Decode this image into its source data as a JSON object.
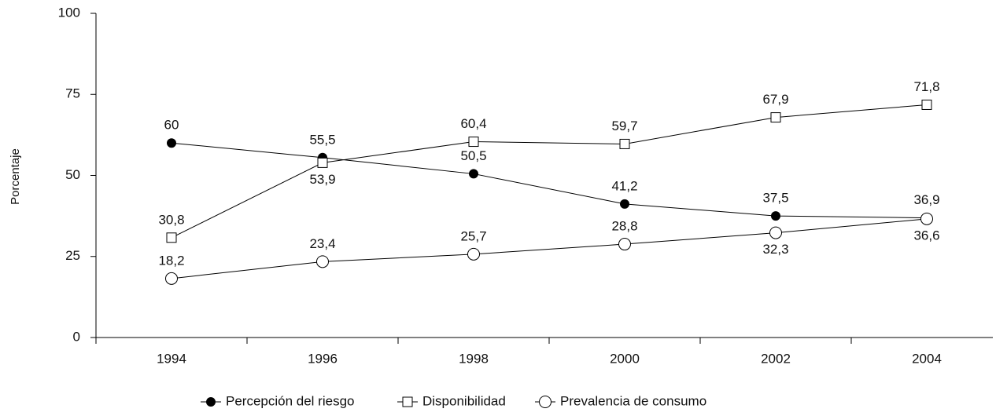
{
  "chart_data": {
    "type": "line",
    "y_label": "Porcentaje",
    "categories": [
      "1994",
      "1996",
      "1998",
      "2000",
      "2002",
      "2004"
    ],
    "series": [
      {
        "name": "Percepción del riesgo",
        "color": "#000000",
        "marker": "circle",
        "fill": "#000000",
        "values": [
          60,
          55.5,
          50.5,
          41.2,
          37.5,
          36.9
        ],
        "value_labels": [
          "60",
          "55,5",
          "50,5",
          "41,2",
          "37,5",
          "36,9"
        ]
      },
      {
        "name": "Disponibilidad",
        "color": "#000000",
        "marker": "square",
        "fill": "#ffffff",
        "values": [
          30.8,
          53.9,
          60.4,
          59.7,
          67.9,
          71.8
        ],
        "value_labels": [
          "30,8",
          "53,9",
          "60,4",
          "59,7",
          "67,9",
          "71,8"
        ]
      },
      {
        "name": "Prevalencia de consumo",
        "color": "#000000",
        "marker": "circle",
        "fill": "#ffffff",
        "values": [
          18.2,
          23.4,
          25.7,
          28.8,
          32.3,
          36.6
        ],
        "value_labels": [
          "18,2",
          "23,4",
          "25,7",
          "28,8",
          "32,3",
          "36,6"
        ]
      }
    ],
    "ylim": [
      0,
      100
    ],
    "yticks": [
      0,
      25,
      50,
      75,
      100
    ],
    "grid": false
  }
}
